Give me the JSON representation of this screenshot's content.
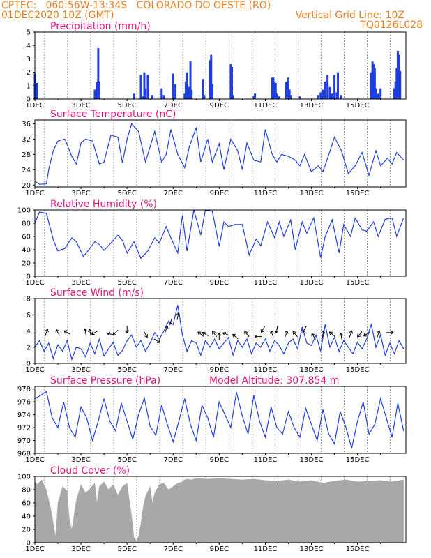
{
  "header": {
    "line1_left": "CPTEC:   060:56W-13:34S   COLORADO DO OESTE (RO)",
    "line2_left": "01DEC2020 10Z (GMT)",
    "line2_right": "Vertical Grid Line: 10Z",
    "line3_right": "TQ0126L028"
  },
  "colors": {
    "header": "#e8801f",
    "title": "#e0157a",
    "series": "#1f3fe0",
    "cloud": "#a8a8a8"
  },
  "chart_data": [
    {
      "id": "precip",
      "type": "bar",
      "title": "Precipitation (mm/h)",
      "ylim": [
        0,
        5
      ],
      "yticks": [
        0,
        1,
        2,
        3,
        4,
        5
      ],
      "xticklabels": [
        "1DEC",
        "3DEC",
        "5DEC",
        "7DEC",
        "9DEC",
        "11DEC",
        "13DEC",
        "15DEC"
      ],
      "x": [
        0,
        0.1,
        2.6,
        2.7,
        2.75,
        2.8,
        4.3,
        4.6,
        4.7,
        4.75,
        4.8,
        4.9,
        5.1,
        5.5,
        5.6,
        6.0,
        6.1,
        6.5,
        6.55,
        6.6,
        6.7,
        6.75,
        6.8,
        7.3,
        7.35,
        7.6,
        7.65,
        7.7,
        8.5,
        8.55,
        8.6,
        9.5,
        9.55,
        10.3,
        10.35,
        10.4,
        10.45,
        10.5,
        10.6,
        10.9,
        11.0,
        11.05,
        11.1,
        11.5,
        12.3,
        12.4,
        12.5,
        12.6,
        12.7,
        12.8,
        12.9,
        13.0,
        13.1,
        13.15,
        13.3,
        14.6,
        14.65,
        14.7,
        14.75,
        14.8,
        14.9,
        15.0,
        15.6,
        15.65,
        15.7,
        15.75,
        15.8,
        15.85
      ],
      "values": [
        1.9,
        1.2,
        0.7,
        1.3,
        3.8,
        1.3,
        0.4,
        1.8,
        0.2,
        2.0,
        0.8,
        1.8,
        0.3,
        0.8,
        0.3,
        1.9,
        1.1,
        0.4,
        1.3,
        2.0,
        0.9,
        2.8,
        0.7,
        1.5,
        0.3,
        2.9,
        3.3,
        1.1,
        2.6,
        2.4,
        0.3,
        0.2,
        0.4,
        1.6,
        1.6,
        1.3,
        1.2,
        0.4,
        0.2,
        1.3,
        1.6,
        0.7,
        0.3,
        0.2,
        0.3,
        0.5,
        0.7,
        1.3,
        1.8,
        0.9,
        0.4,
        1.8,
        0.5,
        2.0,
        0.3,
        2.0,
        2.8,
        2.6,
        2.3,
        0.8,
        0.4,
        0.8,
        0.8,
        1.3,
        2.3,
        3.6,
        3.3,
        2.1
      ]
    },
    {
      "id": "temp",
      "type": "line",
      "title": "Surface Temperature (nC)",
      "ylim": [
        19.5,
        37
      ],
      "yticks": [
        20,
        24,
        28,
        32,
        36
      ],
      "xticklabels": [
        "1DEC",
        "3DEC",
        "5DEC",
        "7DEC",
        "9DEC",
        "11DEC",
        "13DEC",
        "15DEC"
      ],
      "x": [
        0,
        0.2,
        0.5,
        0.6,
        0.8,
        1.0,
        1.3,
        1.6,
        1.8,
        2.0,
        2.2,
        2.5,
        2.8,
        3.0,
        3.3,
        3.6,
        3.8,
        4.0,
        4.2,
        4.5,
        4.8,
        5.0,
        5.2,
        5.5,
        5.7,
        5.9,
        6.2,
        6.5,
        6.7,
        7.0,
        7.2,
        7.5,
        7.7,
        8.0,
        8.2,
        8.5,
        8.8,
        9.0,
        9.2,
        9.5,
        9.8,
        10.0,
        10.3,
        10.5,
        10.7,
        11.0,
        11.3,
        11.5,
        11.7,
        12.0,
        12.3,
        12.5,
        12.7,
        13.0,
        13.3,
        13.6,
        13.9,
        14.2,
        14.5,
        14.8,
        15.0,
        15.3,
        15.5,
        15.7,
        16.0
      ],
      "values": [
        21,
        20.2,
        20.3,
        24,
        29,
        31.5,
        32,
        27.5,
        25.5,
        31,
        32,
        31.5,
        25.5,
        26,
        33,
        32.5,
        25.8,
        32,
        36,
        34,
        26,
        30,
        34,
        26,
        28,
        34.5,
        28,
        24.5,
        30,
        35,
        26,
        32,
        26,
        30.8,
        24,
        32,
        29,
        24,
        31,
        26.5,
        26,
        34.5,
        28,
        26,
        28,
        27.5,
        26.5,
        25,
        28,
        23.5,
        25,
        23.5,
        27,
        32.5,
        29,
        23,
        25,
        28.5,
        22.5,
        29,
        25,
        27,
        25.5,
        28.5,
        26.5
      ],
      "series_color": "#1f3fe0"
    },
    {
      "id": "rh",
      "type": "line",
      "title": "Relative Humidity (%)",
      "ylim": [
        0,
        100
      ],
      "yticks": [
        0,
        20,
        40,
        60,
        80,
        100
      ],
      "xticklabels": [
        "1DEC",
        "3DEC",
        "5DEC",
        "7DEC",
        "9DEC",
        "11DEC",
        "13DEC",
        "15DEC"
      ],
      "x": [
        0,
        0.2,
        0.5,
        0.8,
        1.0,
        1.3,
        1.6,
        1.8,
        2.1,
        2.3,
        2.6,
        2.8,
        3.0,
        3.3,
        3.6,
        3.8,
        4.0,
        4.3,
        4.6,
        4.9,
        5.2,
        5.4,
        5.7,
        5.9,
        6.2,
        6.4,
        6.6,
        6.9,
        7.2,
        7.4,
        7.7,
        8.0,
        8.2,
        8.4,
        8.7,
        9.0,
        9.3,
        9.6,
        9.8,
        10.1,
        10.4,
        10.6,
        10.8,
        11.1,
        11.3,
        11.6,
        11.8,
        12.1,
        12.4,
        12.6,
        12.9,
        13.2,
        13.4,
        13.7,
        13.9,
        14.2,
        14.4,
        14.7,
        14.9,
        15.2,
        15.5,
        15.7,
        16.0
      ],
      "values": [
        80,
        97,
        95,
        55,
        38,
        42,
        58,
        52,
        30,
        38,
        52,
        48,
        39,
        50,
        62,
        54,
        35,
        52,
        27,
        38,
        58,
        50,
        75,
        58,
        35,
        92,
        38,
        100,
        62,
        100,
        98,
        45,
        82,
        75,
        78,
        78,
        32,
        56,
        46,
        82,
        58,
        82,
        60,
        85,
        40,
        82,
        65,
        88,
        28,
        60,
        85,
        35,
        78,
        60,
        88,
        70,
        68,
        82,
        60,
        86,
        88,
        60,
        88
      ],
      "series_color": "#1f3fe0"
    },
    {
      "id": "wind",
      "type": "line",
      "title": "Surface Wind (m/s)",
      "ylim": [
        0,
        8
      ],
      "yticks": [
        0,
        2,
        4,
        6,
        8
      ],
      "xticklabels": [
        "1DEC",
        "3DEC",
        "5DEC",
        "7DEC",
        "9DEC",
        "11DEC",
        "13DEC",
        "15DEC"
      ],
      "x": [
        0,
        0.2,
        0.4,
        0.6,
        0.8,
        1.0,
        1.2,
        1.4,
        1.6,
        1.8,
        2.0,
        2.2,
        2.4,
        2.6,
        2.8,
        3.0,
        3.2,
        3.4,
        3.6,
        3.8,
        4.0,
        4.2,
        4.4,
        4.6,
        4.8,
        5.0,
        5.2,
        5.4,
        5.6,
        5.8,
        6.0,
        6.2,
        6.4,
        6.6,
        6.8,
        7.0,
        7.2,
        7.4,
        7.6,
        7.8,
        8.0,
        8.2,
        8.4,
        8.6,
        8.8,
        9.0,
        9.2,
        9.4,
        9.6,
        9.8,
        10.0,
        10.2,
        10.4,
        10.6,
        10.8,
        11.0,
        11.2,
        11.4,
        11.6,
        11.8,
        12.0,
        12.2,
        12.4,
        12.6,
        12.8,
        13.0,
        13.2,
        13.4,
        13.6,
        13.8,
        14.0,
        14.2,
        14.4,
        14.6,
        14.8,
        15.0,
        15.2,
        15.4,
        15.6,
        15.8,
        16.0
      ],
      "values": [
        2.0,
        2.8,
        1.5,
        2.5,
        0.6,
        2.3,
        1.5,
        2.8,
        0.5,
        2.0,
        1.8,
        0.8,
        2.5,
        1.2,
        3.0,
        0.9,
        1.8,
        2.6,
        1.0,
        1.6,
        2.8,
        3.5,
        2.0,
        2.8,
        1.5,
        2.5,
        3.8,
        3.0,
        4.0,
        5.2,
        4.8,
        7.2,
        3.5,
        1.5,
        2.8,
        2.5,
        1.0,
        2.8,
        2.0,
        3.0,
        1.8,
        2.5,
        3.2,
        1.0,
        2.8,
        2.0,
        3.0,
        1.2,
        2.5,
        2.0,
        3.0,
        1.5,
        2.8,
        2.2,
        1.2,
        2.5,
        3.0,
        1.8,
        4.5,
        2.5,
        2.2,
        3.5,
        1.5,
        4.8,
        2.0,
        3.2,
        1.5,
        2.8,
        2.0,
        1.2,
        2.6,
        1.8,
        3.0,
        4.8,
        2.0,
        3.5,
        1.0,
        2.5,
        1.2,
        2.8,
        1.8
      ],
      "arrows": [
        {
          "x": 0.5,
          "y": 3.8,
          "dir": 200
        },
        {
          "x": 1.0,
          "y": 3.8,
          "dir": 150
        },
        {
          "x": 1.4,
          "y": 3.8,
          "dir": 120
        },
        {
          "x": 2.2,
          "y": 3.8,
          "dir": 170
        },
        {
          "x": 2.4,
          "y": 3.8,
          "dir": 165
        },
        {
          "x": 2.6,
          "y": 3.8,
          "dir": 60
        },
        {
          "x": 3.3,
          "y": 3.6,
          "dir": 100
        },
        {
          "x": 3.5,
          "y": 3.8,
          "dir": 45
        },
        {
          "x": 4.0,
          "y": 4.2,
          "dir": 0
        },
        {
          "x": 4.8,
          "y": 3.6,
          "dir": 330
        },
        {
          "x": 5.3,
          "y": 2.8,
          "dir": 300
        },
        {
          "x": 5.7,
          "y": 4.2,
          "dir": 200
        },
        {
          "x": 5.9,
          "y": 5.2,
          "dir": 20
        },
        {
          "x": 6.2,
          "y": 5.8,
          "dir": 190
        },
        {
          "x": 7.2,
          "y": 3.6,
          "dir": 130
        },
        {
          "x": 7.4,
          "y": 3.6,
          "dir": 120
        },
        {
          "x": 7.8,
          "y": 3.6,
          "dir": 140
        },
        {
          "x": 8.0,
          "y": 3.3,
          "dir": 180
        },
        {
          "x": 8.3,
          "y": 3.6,
          "dir": 110
        },
        {
          "x": 8.7,
          "y": 3.3,
          "dir": 130
        },
        {
          "x": 9.2,
          "y": 3.6,
          "dir": 140
        },
        {
          "x": 9.7,
          "y": 3.3,
          "dir": 90
        },
        {
          "x": 9.9,
          "y": 4.2,
          "dir": 30
        },
        {
          "x": 10.3,
          "y": 3.6,
          "dir": 160
        },
        {
          "x": 10.5,
          "y": 4.2,
          "dir": 10
        },
        {
          "x": 10.9,
          "y": 3.6,
          "dir": 200
        },
        {
          "x": 11.3,
          "y": 3.6,
          "dir": 140
        },
        {
          "x": 11.7,
          "y": 4.2,
          "dir": 30
        },
        {
          "x": 12.1,
          "y": 3.3,
          "dir": 150
        },
        {
          "x": 12.5,
          "y": 3.6,
          "dir": 190
        },
        {
          "x": 12.9,
          "y": 3.6,
          "dir": 130
        },
        {
          "x": 13.3,
          "y": 3.3,
          "dir": 170
        },
        {
          "x": 13.7,
          "y": 3.6,
          "dir": 200
        },
        {
          "x": 14.1,
          "y": 3.6,
          "dir": 40
        },
        {
          "x": 14.4,
          "y": 3.6,
          "dir": 60
        },
        {
          "x": 14.9,
          "y": 3.6,
          "dir": 200
        },
        {
          "x": 15.4,
          "y": 3.8,
          "dir": 270
        }
      ],
      "series_color": "#1f3fe0"
    },
    {
      "id": "pres",
      "type": "line",
      "title": "Surface Pressure (hPa)",
      "subtitle": "Model Altitude: 307.854  m",
      "ylim": [
        968,
        978.4
      ],
      "yticks": [
        968,
        970,
        972,
        974,
        976,
        978
      ],
      "xticklabels": [
        "1DEC",
        "3DEC",
        "5DEC",
        "7DEC",
        "9DEC",
        "11DEC",
        "13DEC",
        "15DEC"
      ],
      "x": [
        0,
        0.25,
        0.5,
        0.75,
        1.0,
        1.25,
        1.5,
        1.75,
        2.0,
        2.25,
        2.5,
        2.75,
        3.0,
        3.25,
        3.5,
        3.75,
        4.0,
        4.25,
        4.5,
        4.75,
        5.0,
        5.25,
        5.5,
        5.75,
        6.0,
        6.25,
        6.5,
        6.75,
        7.0,
        7.25,
        7.5,
        7.75,
        8.0,
        8.25,
        8.5,
        8.75,
        9.0,
        9.25,
        9.5,
        9.75,
        10.0,
        10.25,
        10.5,
        10.75,
        11.0,
        11.25,
        11.5,
        11.75,
        12.0,
        12.25,
        12.5,
        12.75,
        13.0,
        13.25,
        13.5,
        13.75,
        14.0,
        14.25,
        14.5,
        14.75,
        15.0,
        15.25,
        15.5,
        15.75,
        16.0
      ],
      "values": [
        976.5,
        977.0,
        977.6,
        973.5,
        972.0,
        976.0,
        972.0,
        970.5,
        975.2,
        973.5,
        970.0,
        973.0,
        976.5,
        973.0,
        971.5,
        975.8,
        973.0,
        970.2,
        974.0,
        976.6,
        972.2,
        970.8,
        975.5,
        972.5,
        969.8,
        973.0,
        976.5,
        972.5,
        970.0,
        975.5,
        973.5,
        970.5,
        976.0,
        974.0,
        972.0,
        977.5,
        973.8,
        971.0,
        977.0,
        973.0,
        970.5,
        975.2,
        972.0,
        971.0,
        974.5,
        972.0,
        970.5,
        975.0,
        972.5,
        970.0,
        974.8,
        971.0,
        969.5,
        974.5,
        972.0,
        968.8,
        973.0,
        976.0,
        971.0,
        972.5,
        976.5,
        973.5,
        970.5,
        975.8,
        971.5
      ],
      "series_color": "#1f3fe0"
    },
    {
      "id": "cloud",
      "type": "area",
      "title": "Cloud Cover (%)",
      "ylim": [
        0,
        100
      ],
      "yticks": [
        0,
        20,
        40,
        60,
        80,
        100
      ],
      "xticklabels": [
        "1DEC",
        "3DEC",
        "5DEC",
        "7DEC",
        "9DEC",
        "11DEC",
        "13DEC",
        "15DEC"
      ],
      "x": [
        0,
        0.1,
        0.3,
        0.5,
        0.7,
        0.8,
        0.9,
        1.0,
        1.2,
        1.4,
        1.5,
        1.6,
        1.8,
        2.0,
        2.2,
        2.4,
        2.6,
        2.7,
        2.8,
        3.0,
        3.2,
        3.4,
        3.6,
        3.8,
        4.0,
        4.2,
        4.3,
        4.4,
        4.5,
        4.6,
        4.7,
        4.8,
        5.0,
        5.1,
        5.2,
        5.4,
        5.6,
        5.8,
        6.0,
        6.2,
        6.4,
        6.5,
        6.6,
        6.8,
        7.0,
        7.5,
        8.0,
        8.5,
        9.0,
        9.5,
        10.0,
        10.5,
        11.0,
        11.5,
        12.0,
        12.5,
        13.0,
        13.5,
        14.0,
        14.5,
        15.0,
        15.5,
        16.0
      ],
      "values": [
        92,
        88,
        95,
        80,
        50,
        30,
        10,
        60,
        85,
        78,
        35,
        20,
        65,
        88,
        75,
        82,
        90,
        60,
        85,
        92,
        80,
        88,
        72,
        85,
        90,
        40,
        8,
        3,
        10,
        30,
        55,
        70,
        85,
        60,
        75,
        88,
        90,
        80,
        85,
        90,
        92,
        95,
        96,
        95,
        97,
        96,
        97,
        96,
        95,
        96,
        94,
        93,
        95,
        92,
        94,
        90,
        93,
        95,
        92,
        93,
        94,
        92,
        95
      ]
    }
  ]
}
